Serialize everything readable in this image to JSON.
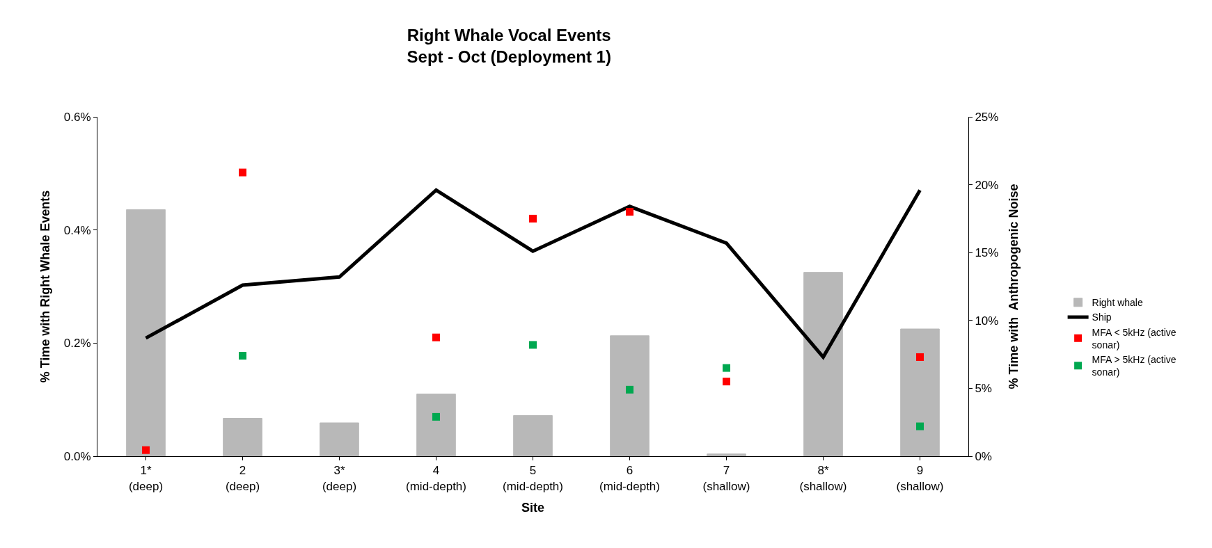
{
  "chart_data": {
    "type": "bar",
    "title": "Right Whale Vocal Events\nSept - Oct (Deployment 1)",
    "xlabel": "Site",
    "ylabel": "% Time with Right Whale Events",
    "y2label": "% Time with  Anthropogenic Noise",
    "categories": [
      "1*\n(deep)",
      "2\n(deep)",
      "3*\n(deep)",
      "4\n(mid-depth)",
      "5\n(mid-depth)",
      "6\n(mid-depth)",
      "7\n(shallow)",
      "8*\n(shallow)",
      "9\n(shallow)"
    ],
    "series": [
      {
        "name": "Right whale",
        "color": "#b8b8b8",
        "values": [
          0.436,
          0.067,
          0.059,
          0.11,
          0.072,
          0.213,
          0.004,
          0.325,
          0.225
        ]
      },
      {
        "name": "Ship",
        "type": "line",
        "axis": "y2",
        "color": "#000000",
        "values": [
          8.7,
          12.6,
          13.2,
          19.6,
          15.1,
          18.4,
          15.7,
          7.3,
          19.6
        ]
      },
      {
        "name": "MFA < 5kHz (active sonar)",
        "type": "scatter",
        "marker": "square",
        "axis": "y2",
        "color": "#ff0000",
        "values": [
          0.45,
          20.9,
          null,
          8.75,
          17.5,
          18.0,
          5.5,
          null,
          7.3
        ]
      },
      {
        "name": "MFA > 5kHz (active sonar)",
        "type": "scatter",
        "marker": "square",
        "axis": "y2",
        "color": "#00a850",
        "values": [
          null,
          7.4,
          null,
          2.9,
          8.2,
          4.9,
          6.5,
          null,
          2.2
        ]
      }
    ],
    "ylim": [
      0,
      0.6
    ],
    "yticks": [
      {
        "value": 0,
        "label": "0.0%"
      },
      {
        "value": 0.2,
        "label": "0.2%"
      },
      {
        "value": 0.4,
        "label": "0.4%"
      },
      {
        "value": 0.6,
        "label": "0.6%"
      }
    ],
    "y2lim": [
      0,
      25
    ],
    "y2ticks": [
      {
        "value": 0,
        "label": "0%"
      },
      {
        "value": 5,
        "label": "5%"
      },
      {
        "value": 10,
        "label": "10%"
      },
      {
        "value": 15,
        "label": "15%"
      },
      {
        "value": 20,
        "label": "20%"
      },
      {
        "value": 25,
        "label": "25%"
      }
    ],
    "legend": "right"
  }
}
